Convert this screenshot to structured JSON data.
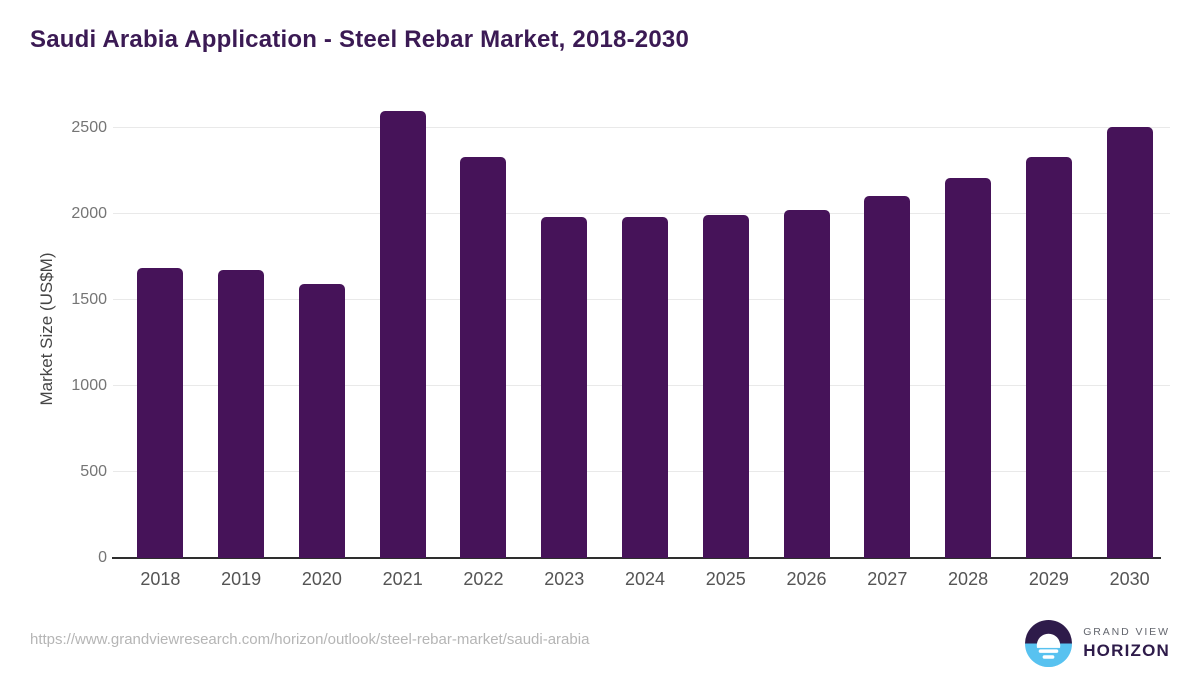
{
  "chart_data": {
    "type": "bar",
    "title": "Saudi Arabia Application - Steel Rebar Market, 2018-2030",
    "categories": [
      "2018",
      "2019",
      "2020",
      "2021",
      "2022",
      "2023",
      "2024",
      "2025",
      "2026",
      "2027",
      "2028",
      "2029",
      "2030"
    ],
    "values": [
      1685,
      1675,
      1591,
      2600,
      2331,
      1983,
      1981,
      1996,
      2025,
      2107,
      2212,
      2334,
      2505
    ],
    "xlabel": "",
    "ylabel": "Market Size (US$M)",
    "yticks": [
      0,
      500,
      1000,
      1500,
      2000,
      2500
    ],
    "ylim": [
      0,
      2663
    ],
    "grid": true,
    "legend": "none",
    "bar_color": "#461359"
  },
  "footer": {
    "source_url": "https://www.grandviewresearch.com/horizon/outlook/steel-rebar-market/saudi-arabia",
    "logo": {
      "line1": "GRAND VIEW",
      "line2": "HORIZON"
    }
  },
  "colors": {
    "bar": "#461359",
    "title": "#3b1a54",
    "grid": "#e9e9e9",
    "axis": "#2e2e2e",
    "y_tick": "#757575",
    "x_tick": "#545454",
    "y_label": "#454545",
    "url": "#b5b5b5",
    "logo_navy": "#2e1b4a",
    "logo_blue": "#58c2f0",
    "logo_gray": "#63666e"
  }
}
